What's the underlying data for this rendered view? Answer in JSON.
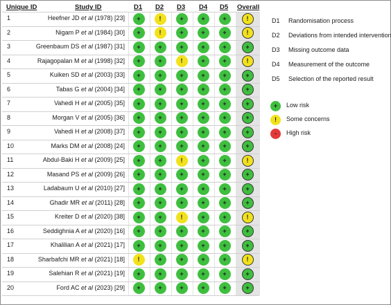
{
  "headers": {
    "unique_id": "Unique ID",
    "study_id": "Study ID",
    "d1": "D1",
    "d2": "D2",
    "d3": "D3",
    "d4": "D4",
    "d5": "D5",
    "overall": "Overall"
  },
  "rows": [
    {
      "id": "1",
      "author": "Heefner JD",
      "etal": "et al",
      "suffix": "(1978) [23]",
      "judgements": [
        "low",
        "some",
        "low",
        "low",
        "low",
        "some"
      ]
    },
    {
      "id": "2",
      "author": "Nigam P",
      "etal": "et al",
      "suffix": "(1984) [30]",
      "judgements": [
        "low",
        "some",
        "low",
        "low",
        "low",
        "some"
      ]
    },
    {
      "id": "3",
      "author": "Greenbaum DS",
      "etal": "et al",
      "suffix": "(1987) [31]",
      "judgements": [
        "low",
        "low",
        "low",
        "low",
        "low",
        "low"
      ]
    },
    {
      "id": "4",
      "author": "Rajagopalan M",
      "etal": "et al",
      "suffix": "(1998) [32]",
      "judgements": [
        "low",
        "low",
        "some",
        "low",
        "low",
        "some"
      ]
    },
    {
      "id": "5",
      "author": "Kuiken SD",
      "etal": "et al",
      "suffix": "(2003) [33]",
      "judgements": [
        "low",
        "low",
        "low",
        "low",
        "low",
        "low"
      ]
    },
    {
      "id": "6",
      "author": "Tabas G",
      "etal": "et al",
      "suffix": "(2004) [34]",
      "judgements": [
        "low",
        "low",
        "low",
        "low",
        "low",
        "low"
      ]
    },
    {
      "id": "7",
      "author": "Vahedi H",
      "etal": "et al",
      "suffix": "(2005) [35]",
      "judgements": [
        "low",
        "low",
        "low",
        "low",
        "low",
        "low"
      ]
    },
    {
      "id": "8",
      "author": "Morgan V",
      "etal": "et al",
      "suffix": "(2005) [36]",
      "judgements": [
        "low",
        "low",
        "low",
        "low",
        "low",
        "low"
      ]
    },
    {
      "id": "9",
      "author": "Vahedi H",
      "etal": "et al",
      "suffix": "(2008) [37]",
      "judgements": [
        "low",
        "low",
        "low",
        "low",
        "low",
        "low"
      ]
    },
    {
      "id": "10",
      "author": "Marks DM",
      "etal": "et al",
      "suffix": "(2008) [24]",
      "judgements": [
        "low",
        "low",
        "low",
        "low",
        "low",
        "low"
      ]
    },
    {
      "id": "11",
      "author": "Abdul-Baki H",
      "etal": "et al",
      "suffix": "(2009) [25]",
      "judgements": [
        "low",
        "low",
        "some",
        "low",
        "low",
        "some"
      ]
    },
    {
      "id": "12",
      "author": "Masand PS",
      "etal": "et al",
      "suffix": "(2009) [26]",
      "judgements": [
        "low",
        "low",
        "low",
        "low",
        "low",
        "low"
      ]
    },
    {
      "id": "13",
      "author": "Ladabaum U",
      "etal": "et al",
      "suffix": "(2010) [27]",
      "judgements": [
        "low",
        "low",
        "low",
        "low",
        "low",
        "low"
      ]
    },
    {
      "id": "14",
      "author": "Ghadir MR",
      "etal": "et al",
      "suffix": "(2011) [28]",
      "judgements": [
        "low",
        "low",
        "low",
        "low",
        "low",
        "low"
      ]
    },
    {
      "id": "15",
      "author": "Kreiter D",
      "etal": "et al",
      "suffix": "(2020) [38]",
      "judgements": [
        "low",
        "low",
        "some",
        "low",
        "low",
        "some"
      ]
    },
    {
      "id": "16",
      "author": "Seddighnia A",
      "etal": "et al",
      "suffix": "(2020) [16]",
      "judgements": [
        "low",
        "low",
        "low",
        "low",
        "low",
        "low"
      ]
    },
    {
      "id": "17",
      "author": "Khalilian A",
      "etal": "et al",
      "suffix": "(2021) [17]",
      "judgements": [
        "low",
        "low",
        "low",
        "low",
        "low",
        "low"
      ]
    },
    {
      "id": "18",
      "author": "Sharbafchi MR",
      "etal": "et al",
      "suffix": "(2021) [18]",
      "judgements": [
        "some",
        "low",
        "low",
        "low",
        "low",
        "some"
      ]
    },
    {
      "id": "19",
      "author": "Salehian R",
      "etal": "et al",
      "suffix": "(2021) [19]",
      "judgements": [
        "low",
        "low",
        "low",
        "low",
        "low",
        "low"
      ]
    },
    {
      "id": "20",
      "author": "Ford AC",
      "etal": "et al",
      "suffix": "(2023) [29]",
      "judgements": [
        "low",
        "low",
        "low",
        "low",
        "low",
        "low"
      ]
    }
  ],
  "domains_legend": [
    {
      "code": "D1",
      "text": "Randomisation process"
    },
    {
      "code": "D2",
      "text": "Deviations from intended interventions"
    },
    {
      "code": "D3",
      "text": "Missing outcome data"
    },
    {
      "code": "D4",
      "text": "Measurement of the outcome"
    },
    {
      "code": "D5",
      "text": "Selection of the reported result"
    }
  ],
  "judgement_legend": [
    {
      "key": "low",
      "symbol": "+",
      "text": "Low risk"
    },
    {
      "key": "some",
      "symbol": "!",
      "text": "Some concerns"
    },
    {
      "key": "high",
      "symbol": "-",
      "text": "High risk"
    }
  ],
  "colors": {
    "low": "#3fbf3f",
    "some": "#f2e21b",
    "high": "#e23a3a",
    "overall_bg": "#e4e4e4",
    "domain_bg": "#ffffff"
  }
}
